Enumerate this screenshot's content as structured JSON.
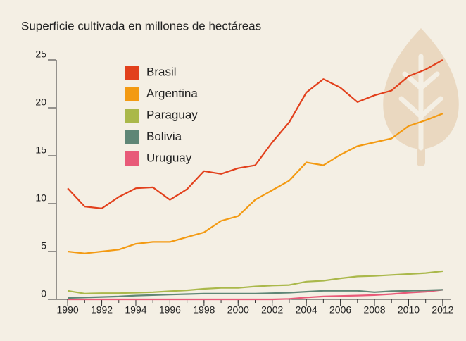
{
  "chart_data": {
    "type": "line",
    "title": "Superficie cultivada en millones de hectáreas",
    "x": [
      1990,
      1991,
      1992,
      1993,
      1994,
      1995,
      1996,
      1997,
      1998,
      1999,
      2000,
      2001,
      2002,
      2003,
      2004,
      2005,
      2006,
      2007,
      2008,
      2009,
      2010,
      2011,
      2012
    ],
    "series": [
      {
        "name": "Brasil",
        "color": "#e2401c",
        "values": [
          11.6,
          9.7,
          9.5,
          10.7,
          11.6,
          11.7,
          10.4,
          11.5,
          13.4,
          13.1,
          13.7,
          14.0,
          16.4,
          18.5,
          21.6,
          23.0,
          22.1,
          20.6,
          21.3,
          21.8,
          23.3,
          24.0,
          25.0
        ]
      },
      {
        "name": "Argentina",
        "color": "#f39a12",
        "values": [
          5.0,
          4.8,
          5.0,
          5.2,
          5.8,
          6.0,
          6.0,
          6.5,
          7.0,
          8.2,
          8.7,
          10.4,
          11.4,
          12.4,
          14.3,
          14.0,
          15.1,
          16.0,
          16.4,
          16.8,
          18.1,
          18.7,
          19.4
        ]
      },
      {
        "name": "Paraguay",
        "color": "#aab84a",
        "values": [
          0.9,
          0.6,
          0.65,
          0.65,
          0.7,
          0.75,
          0.85,
          0.95,
          1.1,
          1.2,
          1.2,
          1.35,
          1.45,
          1.5,
          1.85,
          1.95,
          2.2,
          2.4,
          2.45,
          2.55,
          2.65,
          2.75,
          2.95
        ]
      },
      {
        "name": "Bolivia",
        "color": "#5f8676",
        "values": [
          0.15,
          0.2,
          0.25,
          0.3,
          0.4,
          0.45,
          0.5,
          0.55,
          0.6,
          0.6,
          0.6,
          0.6,
          0.65,
          0.7,
          0.8,
          0.9,
          0.9,
          0.9,
          0.75,
          0.85,
          0.9,
          0.95,
          1.0
        ]
      },
      {
        "name": "Uruguay",
        "color": "#e85a78",
        "values": [
          0,
          0,
          0,
          0,
          0,
          0,
          0,
          0,
          0,
          0,
          0,
          0,
          0,
          0.05,
          0.2,
          0.3,
          0.35,
          0.4,
          0.45,
          0.55,
          0.7,
          0.8,
          1.0
        ]
      }
    ],
    "xlim": [
      1989.5,
      2012.5
    ],
    "xticks": [
      1990,
      1992,
      1994,
      1996,
      1998,
      2000,
      2002,
      2004,
      2006,
      2008,
      2010,
      2012
    ],
    "ylim": [
      0,
      25
    ],
    "yticks": [
      0,
      5,
      10,
      15,
      20,
      25
    ]
  }
}
